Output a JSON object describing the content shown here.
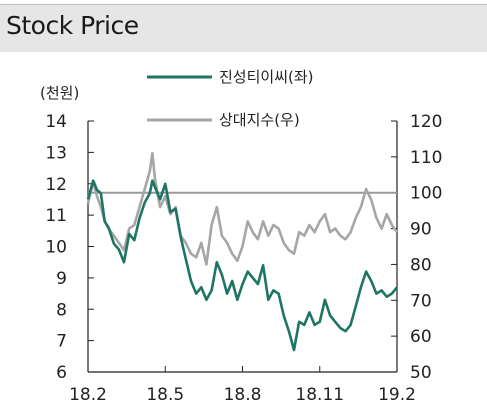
{
  "header": {
    "title": "Stock Price"
  },
  "chart_data": {
    "type": "line",
    "left_axis_unit": "(천원)",
    "left_ylim": [
      6,
      14
    ],
    "left_ticks": [
      6,
      7,
      8,
      9,
      10,
      11,
      12,
      13,
      14
    ],
    "right_ylim": [
      50,
      120
    ],
    "right_ticks": [
      50,
      60,
      70,
      80,
      90,
      100,
      110,
      120
    ],
    "x_ticks": [
      "18.2",
      "18.5",
      "18.8",
      "18.11",
      "19.2"
    ],
    "x_tick_pos": [
      0,
      3,
      6,
      9,
      12
    ],
    "reference_line": {
      "axis": "right",
      "value": 100
    },
    "series": [
      {
        "name": "진성티이씨(좌)",
        "axis": "left",
        "color": "#1f7564",
        "x": [
          0,
          0.2,
          0.35,
          0.5,
          0.65,
          0.8,
          1.0,
          1.2,
          1.4,
          1.6,
          1.8,
          2.0,
          2.2,
          2.4,
          2.5,
          2.6,
          2.7,
          2.8,
          3.0,
          3.2,
          3.4,
          3.6,
          3.8,
          4.0,
          4.2,
          4.4,
          4.6,
          4.8,
          5.0,
          5.2,
          5.4,
          5.6,
          5.8,
          6.0,
          6.2,
          6.4,
          6.6,
          6.8,
          7.0,
          7.2,
          7.4,
          7.6,
          7.8,
          8.0,
          8.2,
          8.4,
          8.6,
          8.8,
          9.0,
          9.2,
          9.4,
          9.6,
          9.8,
          10.0,
          10.2,
          10.4,
          10.6,
          10.8,
          11.0,
          11.2,
          11.4,
          11.6,
          11.8,
          12.0
        ],
        "values": [
          11.5,
          12.1,
          11.8,
          11.7,
          10.8,
          10.6,
          10.1,
          9.9,
          9.5,
          10.4,
          10.2,
          10.9,
          11.4,
          11.7,
          12.1,
          11.9,
          11.7,
          11.5,
          12.0,
          11.1,
          11.2,
          10.3,
          9.6,
          8.9,
          8.5,
          8.7,
          8.3,
          8.6,
          9.5,
          9.1,
          8.5,
          8.9,
          8.3,
          8.8,
          9.2,
          9.0,
          8.8,
          9.4,
          8.3,
          8.6,
          8.5,
          7.8,
          7.3,
          6.7,
          7.6,
          7.5,
          7.9,
          7.5,
          7.6,
          8.3,
          7.8,
          7.6,
          7.4,
          7.3,
          7.5,
          8.1,
          8.7,
          9.2,
          8.9,
          8.5,
          8.6,
          8.4,
          8.5,
          8.7
        ]
      },
      {
        "name": "상대지수(우)",
        "axis": "right",
        "color": "#a6a6a6",
        "x": [
          0,
          0.2,
          0.35,
          0.5,
          0.65,
          0.8,
          1.0,
          1.2,
          1.4,
          1.6,
          1.8,
          2.0,
          2.2,
          2.4,
          2.5,
          2.6,
          2.7,
          2.8,
          3.0,
          3.2,
          3.4,
          3.6,
          3.8,
          4.0,
          4.2,
          4.4,
          4.6,
          4.8,
          5.0,
          5.2,
          5.4,
          5.6,
          5.8,
          6.0,
          6.2,
          6.4,
          6.6,
          6.8,
          7.0,
          7.2,
          7.4,
          7.6,
          7.8,
          8.0,
          8.2,
          8.4,
          8.6,
          8.8,
          9.0,
          9.2,
          9.4,
          9.6,
          9.8,
          10.0,
          10.2,
          10.4,
          10.6,
          10.8,
          11.0,
          11.2,
          11.4,
          11.6,
          11.8,
          12.0
        ],
        "values": [
          97,
          103,
          99,
          96,
          92,
          90,
          88,
          86,
          84,
          90,
          91,
          96,
          101,
          106,
          111,
          104,
          100,
          96,
          99,
          94,
          96,
          88,
          86,
          83,
          82,
          86,
          80,
          91,
          96,
          88,
          86,
          83,
          81,
          85,
          92,
          89,
          87,
          92,
          88,
          91,
          90,
          86,
          84,
          83,
          89,
          88,
          91,
          89,
          92,
          94,
          89,
          90,
          88,
          87,
          89,
          93,
          96,
          101,
          98,
          93,
          90,
          94,
          91,
          89
        ]
      }
    ]
  }
}
